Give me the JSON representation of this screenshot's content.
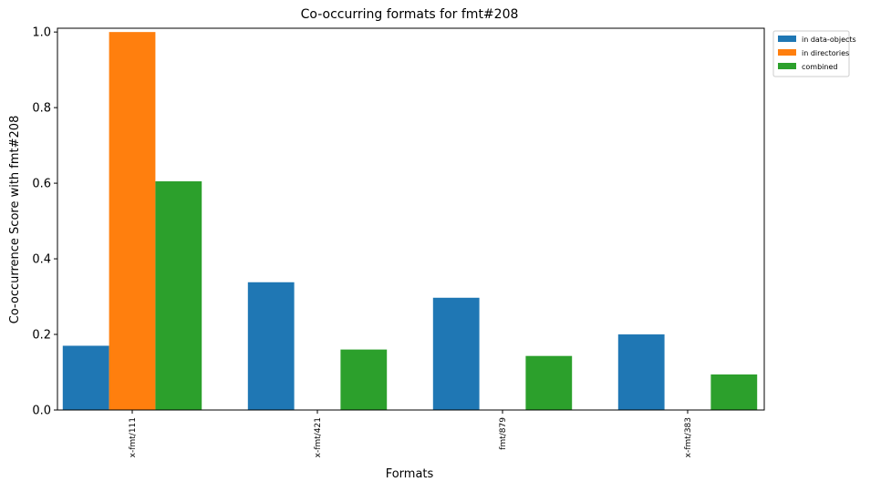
{
  "chart_data": {
    "type": "bar",
    "title": "Co-occurring formats for fmt#208",
    "xlabel": "Formats",
    "ylabel": "Co-occurrence Score with fmt#208",
    "categories": [
      "x-fmt/111",
      "x-fmt/421",
      "fmt/879",
      "x-fmt/383"
    ],
    "series": [
      {
        "name": "in data-objects",
        "color": "#1f77b4",
        "values": [
          0.17,
          0.338,
          0.297,
          0.2
        ]
      },
      {
        "name": "in directories",
        "color": "#ff7f0e",
        "values": [
          1.0,
          0.0,
          0.0,
          0.0
        ]
      },
      {
        "name": "combined",
        "color": "#2ca02c",
        "values": [
          0.605,
          0.16,
          0.143,
          0.094
        ]
      }
    ],
    "ylim": [
      0,
      1.01
    ],
    "yticks": [
      0.0,
      0.2,
      0.4,
      0.6,
      0.8,
      1.0
    ],
    "ytick_labels": [
      "0.0",
      "0.2",
      "0.4",
      "0.6",
      "0.8",
      "1.0"
    ],
    "grid": false,
    "legend_position": "outside-top-right"
  }
}
